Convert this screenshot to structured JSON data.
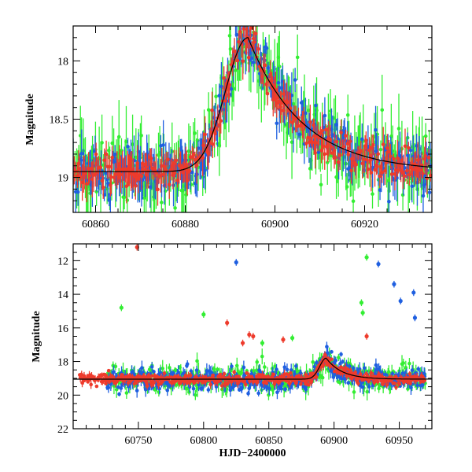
{
  "chart_data": [
    {
      "type": "scatter",
      "panel": "top",
      "title": "",
      "xlabel": "",
      "ylabel": "Magnitude",
      "xlim": [
        60855,
        60935
      ],
      "ylim": [
        19.3,
        17.7
      ],
      "y_inverted": true,
      "x_ticks": [
        "60860",
        "60880",
        "60900",
        "60920"
      ],
      "x_tick_values": [
        60860,
        60880,
        60900,
        60920
      ],
      "y_ticks": [
        "18",
        "18.5",
        "19"
      ],
      "y_tick_values": [
        18,
        18.5,
        19
      ],
      "grid": false,
      "series": [
        {
          "name": "green",
          "color": "#33ee33",
          "baseline": 18.95,
          "error_mean": 0.18,
          "scatter": 0.25,
          "outliers": 0
        },
        {
          "name": "blue",
          "color": "#1f5fe0",
          "baseline": 18.95,
          "error_mean": 0.12,
          "scatter": 0.18,
          "outliers": 0
        },
        {
          "name": "red",
          "color": "#ee3b2c",
          "baseline": 18.95,
          "error_mean": 0.09,
          "scatter": 0.12,
          "outliers": 0
        }
      ],
      "model_curve": {
        "color": "#000000",
        "baseline": 18.95,
        "peak_x": 60894,
        "peak_mag": 17.8,
        "rise": 5,
        "decay": 12
      }
    },
    {
      "type": "scatter",
      "panel": "bottom",
      "title": "",
      "xlabel": "HJD−2400000",
      "ylabel": "Magnitude",
      "xlim": [
        60700,
        60975
      ],
      "ylim": [
        22,
        11
      ],
      "y_inverted": true,
      "x_ticks": [
        "60750",
        "60800",
        "60850",
        "60900",
        "60950"
      ],
      "x_tick_values": [
        60750,
        60800,
        60850,
        60900,
        60950
      ],
      "y_ticks": [
        "12",
        "14",
        "16",
        "18",
        "20",
        "22"
      ],
      "y_tick_values": [
        12,
        14,
        16,
        18,
        20,
        22
      ],
      "grid": false,
      "series": [
        {
          "name": "green",
          "color": "#33ee33",
          "baseline": 19.1,
          "error_mean": 0.3,
          "scatter": 0.6
        },
        {
          "name": "blue",
          "color": "#1f5fe0",
          "baseline": 19.1,
          "error_mean": 0.25,
          "scatter": 0.5
        },
        {
          "name": "red",
          "color": "#ee3b2c",
          "baseline": 19.05,
          "error_mean": 0.15,
          "scatter": 0.25
        }
      ],
      "outliers": [
        {
          "series": "red",
          "x": 60749,
          "y": 11.2
        },
        {
          "series": "green",
          "x": 60737,
          "y": 14.8
        },
        {
          "series": "green",
          "x": 60800,
          "y": 15.2
        },
        {
          "series": "red",
          "x": 60818,
          "y": 15.7
        },
        {
          "series": "blue",
          "x": 60825,
          "y": 12.1
        },
        {
          "series": "red",
          "x": 60835,
          "y": 16.4
        },
        {
          "series": "red",
          "x": 60838,
          "y": 16.5
        },
        {
          "series": "red",
          "x": 60830,
          "y": 16.9
        },
        {
          "series": "green",
          "x": 60845,
          "y": 16.9
        },
        {
          "series": "red",
          "x": 60861,
          "y": 16.7
        },
        {
          "series": "green",
          "x": 60868,
          "y": 16.6
        },
        {
          "series": "green",
          "x": 60921,
          "y": 14.5
        },
        {
          "series": "green",
          "x": 60922,
          "y": 15.1
        },
        {
          "series": "green",
          "x": 60925,
          "y": 11.8
        },
        {
          "series": "red",
          "x": 60925,
          "y": 16.5
        },
        {
          "series": "blue",
          "x": 60934,
          "y": 12.2
        },
        {
          "series": "blue",
          "x": 60946,
          "y": 13.4
        },
        {
          "series": "blue",
          "x": 60951,
          "y": 14.4
        },
        {
          "series": "blue",
          "x": 60961,
          "y": 13.9
        },
        {
          "series": "blue",
          "x": 60962,
          "y": 15.4
        }
      ],
      "model_curve": {
        "color": "#000000",
        "baseline": 19.05,
        "peak_x": 60894,
        "peak_mag": 17.8,
        "rise": 5,
        "decay": 12
      }
    }
  ]
}
